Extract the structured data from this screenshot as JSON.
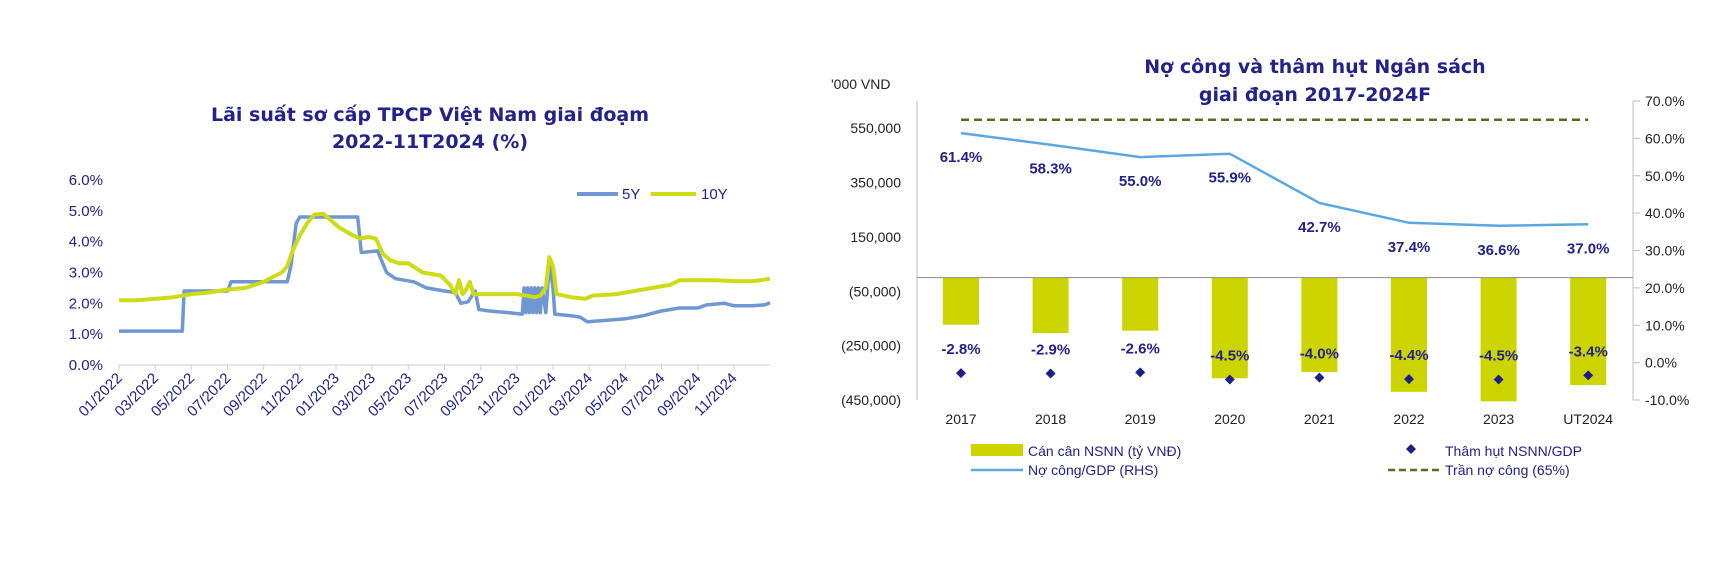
{
  "colors": {
    "navy": "#22228a",
    "series_5y": "#6f97d3",
    "series_10y": "#cddc16",
    "bar": "#ccd500",
    "debt_line": "#5aa8e2",
    "ceiling": "#5a6b1e",
    "deficit_marker": "#1f1f8a"
  },
  "chart_data": [
    {
      "type": "line",
      "title_line1": "Lãi suất sơ cấp TPCP Việt Nam giai đoạm",
      "title_line2": "2022-11T2024 (%)",
      "y_ticks": [
        "0.0%",
        "1.0%",
        "2.0%",
        "3.0%",
        "4.0%",
        "5.0%",
        "6.0%"
      ],
      "ylim": [
        0,
        6
      ],
      "x_ticks": [
        "01/2022",
        "03/2022",
        "05/2022",
        "07/2022",
        "09/2022",
        "11/2022",
        "01/2023",
        "03/2023",
        "05/2023",
        "07/2023",
        "09/2023",
        "11/2023",
        "01/2024",
        "03/2024",
        "05/2024",
        "07/2024",
        "09/2024",
        "11/2024"
      ],
      "x_unit": "months since 01/2022",
      "xlim": [
        0,
        36
      ],
      "legend": [
        "5Y",
        "10Y"
      ],
      "series": [
        {
          "name": "5Y",
          "points": [
            [
              0,
              1.1
            ],
            [
              3.5,
              1.1
            ],
            [
              3.6,
              2.4
            ],
            [
              6,
              2.4
            ],
            [
              6.2,
              2.7
            ],
            [
              9.3,
              2.7
            ],
            [
              9.5,
              3.2
            ],
            [
              9.8,
              4.6
            ],
            [
              10,
              4.8
            ],
            [
              13.2,
              4.8
            ],
            [
              13.4,
              3.65
            ],
            [
              14.3,
              3.7
            ],
            [
              14.8,
              3.0
            ],
            [
              15.3,
              2.8
            ],
            [
              16.3,
              2.7
            ],
            [
              17,
              2.5
            ],
            [
              18,
              2.4
            ],
            [
              18.6,
              2.35
            ],
            [
              18.9,
              2.0
            ],
            [
              19.3,
              2.05
            ],
            [
              19.7,
              2.4
            ],
            [
              19.9,
              1.8
            ],
            [
              20.5,
              1.75
            ],
            [
              21.5,
              1.7
            ],
            [
              22.3,
              1.65
            ],
            [
              22.4,
              2.5
            ],
            [
              22.5,
              1.7
            ],
            [
              22.6,
              2.5
            ],
            [
              22.7,
              1.7
            ],
            [
              22.8,
              2.5
            ],
            [
              22.9,
              1.7
            ],
            [
              23.0,
              2.5
            ],
            [
              23.1,
              1.7
            ],
            [
              23.2,
              2.5
            ],
            [
              23.3,
              1.7
            ],
            [
              23.4,
              2.5
            ],
            [
              23.6,
              1.7
            ],
            [
              23.8,
              3.3
            ],
            [
              24,
              2.5
            ],
            [
              24.1,
              1.65
            ],
            [
              25,
              1.6
            ],
            [
              25.5,
              1.55
            ],
            [
              25.9,
              1.4
            ],
            [
              27,
              1.45
            ],
            [
              28,
              1.5
            ],
            [
              29,
              1.6
            ],
            [
              30,
              1.75
            ],
            [
              31,
              1.85
            ],
            [
              32,
              1.85
            ],
            [
              32.5,
              1.95
            ],
            [
              33.5,
              2.0
            ],
            [
              34,
              1.92
            ],
            [
              35,
              1.92
            ],
            [
              35.7,
              1.95
            ],
            [
              36,
              2.02
            ]
          ]
        },
        {
          "name": "10Y",
          "points": [
            [
              0,
              2.1
            ],
            [
              1,
              2.1
            ],
            [
              2,
              2.15
            ],
            [
              3,
              2.2
            ],
            [
              4,
              2.3
            ],
            [
              5,
              2.35
            ],
            [
              6,
              2.45
            ],
            [
              7,
              2.5
            ],
            [
              8,
              2.7
            ],
            [
              8.5,
              2.85
            ],
            [
              9,
              3.0
            ],
            [
              9.3,
              3.2
            ],
            [
              9.6,
              3.7
            ],
            [
              10,
              4.2
            ],
            [
              10.4,
              4.6
            ],
            [
              10.8,
              4.88
            ],
            [
              11.3,
              4.9
            ],
            [
              11.7,
              4.7
            ],
            [
              12.2,
              4.45
            ],
            [
              12.8,
              4.25
            ],
            [
              13.3,
              4.1
            ],
            [
              13.8,
              4.15
            ],
            [
              14.2,
              4.1
            ],
            [
              14.6,
              3.6
            ],
            [
              15,
              3.4
            ],
            [
              15.5,
              3.3
            ],
            [
              16,
              3.3
            ],
            [
              16.8,
              3.0
            ],
            [
              17.8,
              2.9
            ],
            [
              18.3,
              2.6
            ],
            [
              18.6,
              2.3
            ],
            [
              18.8,
              2.75
            ],
            [
              19,
              2.3
            ],
            [
              19.2,
              2.45
            ],
            [
              19.4,
              2.7
            ],
            [
              19.6,
              2.3
            ],
            [
              21,
              2.3
            ],
            [
              22,
              2.3
            ],
            [
              22.5,
              2.25
            ],
            [
              23,
              2.2
            ],
            [
              23.3,
              2.25
            ],
            [
              23.6,
              2.5
            ],
            [
              23.8,
              3.5
            ],
            [
              24,
              3.2
            ],
            [
              24.2,
              2.3
            ],
            [
              25,
              2.2
            ],
            [
              25.8,
              2.15
            ],
            [
              26.2,
              2.25
            ],
            [
              27.5,
              2.3
            ],
            [
              28.5,
              2.4
            ],
            [
              29.5,
              2.5
            ],
            [
              30.5,
              2.6
            ],
            [
              31,
              2.75
            ],
            [
              32,
              2.75
            ],
            [
              33,
              2.75
            ],
            [
              34,
              2.72
            ],
            [
              35,
              2.72
            ],
            [
              35.5,
              2.75
            ],
            [
              36,
              2.8
            ]
          ]
        }
      ]
    },
    {
      "type": "bar+line",
      "title_line1": "Nợ công và thâm hụt Ngân sách",
      "title_line2": "giai đoạn 2017-2024F",
      "left_unit_label": "'000 VND",
      "categories": [
        "2017",
        "2018",
        "2019",
        "2020",
        "2021",
        "2022",
        "2023",
        "UT2024"
      ],
      "left_ylim": [
        -450000,
        650000
      ],
      "left_ticks": [
        "550,000",
        "350,000",
        "150,000",
        "(50,000)",
        "(250,000)",
        "(450,000)"
      ],
      "right_ylim": [
        -10,
        70
      ],
      "right_ticks": [
        "70.0%",
        "60.0%",
        "50.0%",
        "40.0%",
        "30.0%",
        "20.0%",
        "10.0%",
        "0.0%",
        "-10.0%"
      ],
      "series": [
        {
          "name": "Cán cân NSNN (tỷ VNĐ)",
          "kind": "bar",
          "axis": "left",
          "values": [
            -173000,
            -204000,
            -195000,
            -370000,
            -347000,
            -420000,
            -455000,
            -395000
          ]
        },
        {
          "name": "Nợ công/GDP (RHS)",
          "kind": "line",
          "axis": "right",
          "values": [
            61.4,
            58.3,
            55.0,
            55.9,
            42.7,
            37.4,
            36.6,
            37.0
          ],
          "labels": [
            "61.4%",
            "58.3%",
            "55.0%",
            "55.9%",
            "42.7%",
            "37.4%",
            "36.6%",
            "37.0%"
          ]
        },
        {
          "name": "Thâm hụt NSNN/GDP",
          "kind": "marker",
          "axis": "right",
          "values": [
            -2.8,
            -2.9,
            -2.6,
            -4.5,
            -4.0,
            -4.4,
            -4.5,
            -3.4
          ],
          "labels": [
            "-2.8%",
            "-2.9%",
            "-2.6%",
            "-4.5%",
            "-4.0%",
            "-4.4%",
            "-4.5%",
            "-3.4%"
          ]
        },
        {
          "name": "Trần nợ công (65%)",
          "kind": "dashed",
          "axis": "right",
          "value": 65
        }
      ]
    }
  ]
}
